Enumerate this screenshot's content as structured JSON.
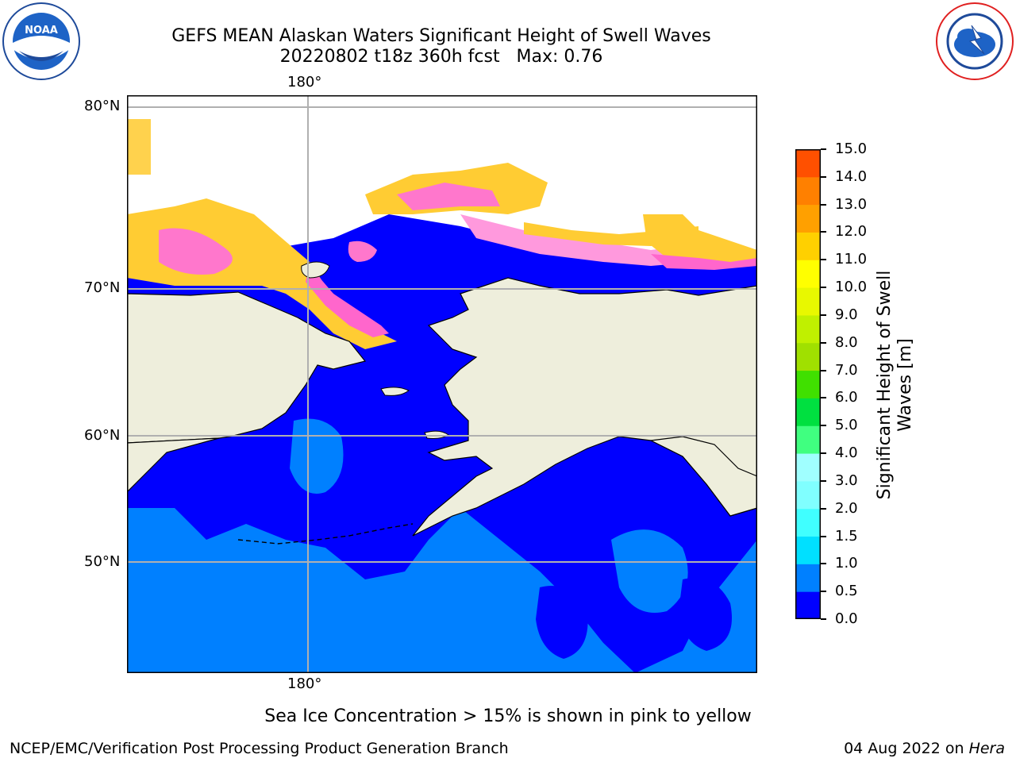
{
  "header": {
    "title_line1": "GEFS MEAN Alaskan Waters Significant Height of Swell Waves",
    "title_line2": "20220802 t18z 360h fcst   Max: 0.76",
    "left_logo": {
      "icon": "noaa-logo",
      "text": "NOAA",
      "ring_text": "NATIONAL OCEANIC AND ATMOSPHERIC ADMINISTRATION · U.S. DEPARTMENT OF COMMERCE"
    },
    "right_logo": {
      "icon": "nws-logo",
      "ring_text": "NATIONAL WEATHER SERVICE"
    }
  },
  "map": {
    "lon_label": "180°",
    "lat_labels": [
      "80°N",
      "70°N",
      "60°N",
      "50°N"
    ],
    "colors": {
      "land": "#eeeedc",
      "sea_low": "#0000ff",
      "sea_mid": "#0080ff",
      "ice_pink": "#ff66cc",
      "ice_yellow": "#ffcc00",
      "grid": "#b0b0b0"
    }
  },
  "colorbar": {
    "label": "Significant Height of Swell Waves [m]",
    "ticks": [
      "15.0",
      "14.0",
      "13.0",
      "12.0",
      "11.0",
      "10.0",
      "9.0",
      "8.0",
      "7.0",
      "6.0",
      "5.0",
      "4.0",
      "3.0",
      "2.0",
      "1.5",
      "1.0",
      "0.5",
      "0.0"
    ],
    "colors": [
      "#0000ff",
      "#0080ff",
      "#00e0ff",
      "#40ffff",
      "#80ffff",
      "#a0ffff",
      "#40ff80",
      "#00e040",
      "#40e000",
      "#a0e000",
      "#c0f000",
      "#e8f800",
      "#ffff00",
      "#ffd000",
      "#ffa000",
      "#ff8000",
      "#ff5000",
      "#ff2800",
      "#ff0000"
    ]
  },
  "notes": {
    "sea_ice": "Sea Ice Concentration > 15% is shown in pink to yellow"
  },
  "footer": {
    "left": "NCEP/EMC/Verification Post Processing Product Generation Branch",
    "right_date": "04 Aug 2022 on ",
    "right_host": "Hera"
  }
}
